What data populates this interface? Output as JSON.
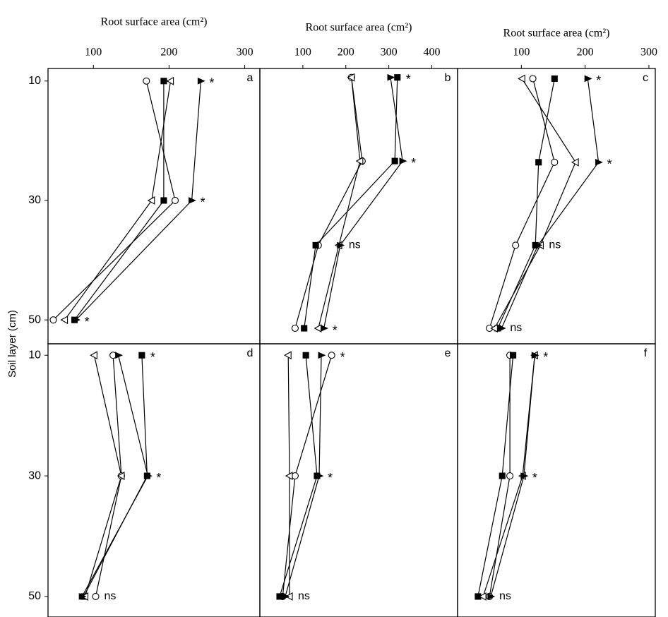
{
  "chart_data": [
    {
      "type": "line",
      "panel": "a",
      "xlabel": "Root surface area (cm²)",
      "ylabel": "Soil layer (cm)",
      "xlim": [
        40,
        320
      ],
      "xticks": [
        100,
        200,
        300
      ],
      "ylim": [
        7.9,
        54
      ],
      "yticks": [
        10,
        30,
        50
      ],
      "series": [
        {
          "marker": "circle",
          "filled": false,
          "color": "#000000",
          "x": [
            170,
            208,
            47
          ],
          "y": [
            10,
            30,
            50
          ]
        },
        {
          "marker": "square",
          "filled": true,
          "color": "#000000",
          "x": [
            193,
            193,
            75
          ],
          "y": [
            10,
            30,
            50
          ]
        },
        {
          "marker": "triangle-left",
          "filled": false,
          "color": "#000000",
          "x": [
            202,
            177,
            62
          ],
          "y": [
            10,
            30,
            50
          ]
        },
        {
          "marker": "triangle-right",
          "filled": true,
          "color": "#000000",
          "x": [
            242,
            230,
            77
          ],
          "y": [
            10,
            30,
            50
          ]
        }
      ],
      "annotations": [
        "*",
        "*",
        "*"
      ]
    },
    {
      "type": "line",
      "panel": "b",
      "xlabel": "Root surface area (cm²)",
      "xlim": [
        0,
        460
      ],
      "xticks": [
        100,
        200,
        300,
        400
      ],
      "ylim": [
        7.9,
        54
      ],
      "series": [
        {
          "marker": "circle",
          "filled": false,
          "color": "#000000",
          "x": [
            213,
            238,
            136,
            82
          ],
          "y": [
            9.4,
            23.4,
            37.5,
            51.4
          ]
        },
        {
          "marker": "square",
          "filled": true,
          "color": "#000000",
          "x": [
            320,
            314,
            130,
            103
          ],
          "y": [
            9.4,
            23.4,
            37.5,
            51.4
          ]
        },
        {
          "marker": "triangle-left",
          "filled": false,
          "color": "#000000",
          "x": [
            213,
            233,
            184,
            136
          ],
          "y": [
            9.4,
            23.4,
            37.5,
            51.4
          ]
        },
        {
          "marker": "triangle-right",
          "filled": true,
          "color": "#000000",
          "x": [
            304,
            332,
            187,
            149
          ],
          "y": [
            9.4,
            23.4,
            37.5,
            51.4
          ]
        }
      ],
      "annotations": [
        "*",
        "*",
        "ns",
        "*"
      ]
    },
    {
      "type": "line",
      "panel": "c",
      "xlabel": "Root surface area (cm²)",
      "xlim": [
        0,
        310
      ],
      "xticks": [
        100,
        200,
        300
      ],
      "ylim": [
        7.9,
        54
      ],
      "series": [
        {
          "marker": "circle",
          "filled": false,
          "color": "#000000",
          "x": [
            118,
            152,
            91,
            50
          ],
          "y": [
            9.6,
            23.6,
            37.5,
            51.4
          ]
        },
        {
          "marker": "square",
          "filled": true,
          "color": "#000000",
          "x": [
            152,
            127,
            122,
            63
          ],
          "y": [
            9.6,
            23.6,
            37.5,
            51.4
          ]
        },
        {
          "marker": "triangle-left",
          "filled": false,
          "color": "#000000",
          "x": [
            101,
            185,
            130,
            58
          ],
          "y": [
            9.6,
            23.6,
            37.5,
            51.4
          ]
        },
        {
          "marker": "triangle-right",
          "filled": true,
          "color": "#000000",
          "x": [
            204,
            221,
            126,
            69
          ],
          "y": [
            9.6,
            23.6,
            37.5,
            51.4
          ]
        }
      ],
      "annotations": [
        "*",
        "*",
        "ns",
        "ns"
      ]
    },
    {
      "type": "line",
      "panel": "d",
      "xlim": [
        40,
        320
      ],
      "ylim": [
        8.1,
        53.4
      ],
      "yticks": [
        10,
        30,
        50
      ],
      "series": [
        {
          "marker": "circle",
          "filled": false,
          "color": "#000000",
          "x": [
            126,
            137,
            103
          ],
          "y": [
            10,
            30,
            50
          ]
        },
        {
          "marker": "square",
          "filled": true,
          "color": "#000000",
          "x": [
            164,
            171,
            87
          ],
          "y": [
            10,
            30,
            50
          ]
        },
        {
          "marker": "triangle-left",
          "filled": false,
          "color": "#000000",
          "x": [
            101,
            137,
            89
          ],
          "y": [
            10,
            30,
            50
          ]
        },
        {
          "marker": "triangle-right",
          "filled": true,
          "color": "#000000",
          "x": [
            133,
            172,
            85
          ],
          "y": [
            10,
            30,
            50
          ]
        }
      ],
      "annotations": [
        "*",
        "*",
        "ns"
      ]
    },
    {
      "type": "line",
      "panel": "e",
      "xlim": [
        0,
        460
      ],
      "ylim": [
        8.1,
        53.4
      ],
      "series": [
        {
          "marker": "circle",
          "filled": false,
          "color": "#000000",
          "x": [
            167,
            82,
            53
          ],
          "y": [
            10,
            30,
            50
          ]
        },
        {
          "marker": "square",
          "filled": true,
          "color": "#000000",
          "x": [
            107,
            133,
            46
          ],
          "y": [
            10,
            30,
            50
          ]
        },
        {
          "marker": "triangle-left",
          "filled": false,
          "color": "#000000",
          "x": [
            66,
            69,
            69
          ],
          "y": [
            10,
            30,
            50
          ]
        },
        {
          "marker": "triangle-right",
          "filled": true,
          "color": "#000000",
          "x": [
            143,
            138,
            59
          ],
          "y": [
            10,
            30,
            50
          ]
        }
      ],
      "annotations": [
        "*",
        "*",
        "ns"
      ]
    },
    {
      "type": "line",
      "panel": "f",
      "xlim": [
        0,
        310
      ],
      "ylim": [
        8.1,
        53.4
      ],
      "series": [
        {
          "marker": "circle",
          "filled": false,
          "color": "#000000",
          "x": [
            82,
            82,
            50
          ],
          "y": [
            10,
            30,
            50
          ]
        },
        {
          "marker": "square",
          "filled": true,
          "color": "#000000",
          "x": [
            87,
            70,
            32
          ],
          "y": [
            10,
            30,
            50
          ]
        },
        {
          "marker": "triangle-left",
          "filled": false,
          "color": "#000000",
          "x": [
            121,
            102,
            40
          ],
          "y": [
            10,
            30,
            50
          ]
        },
        {
          "marker": "triangle-right",
          "filled": true,
          "color": "#000000",
          "x": [
            121,
            104,
            52
          ],
          "y": [
            10,
            30,
            50
          ]
        }
      ],
      "annotations": [
        "*",
        "*",
        "ns"
      ]
    }
  ]
}
